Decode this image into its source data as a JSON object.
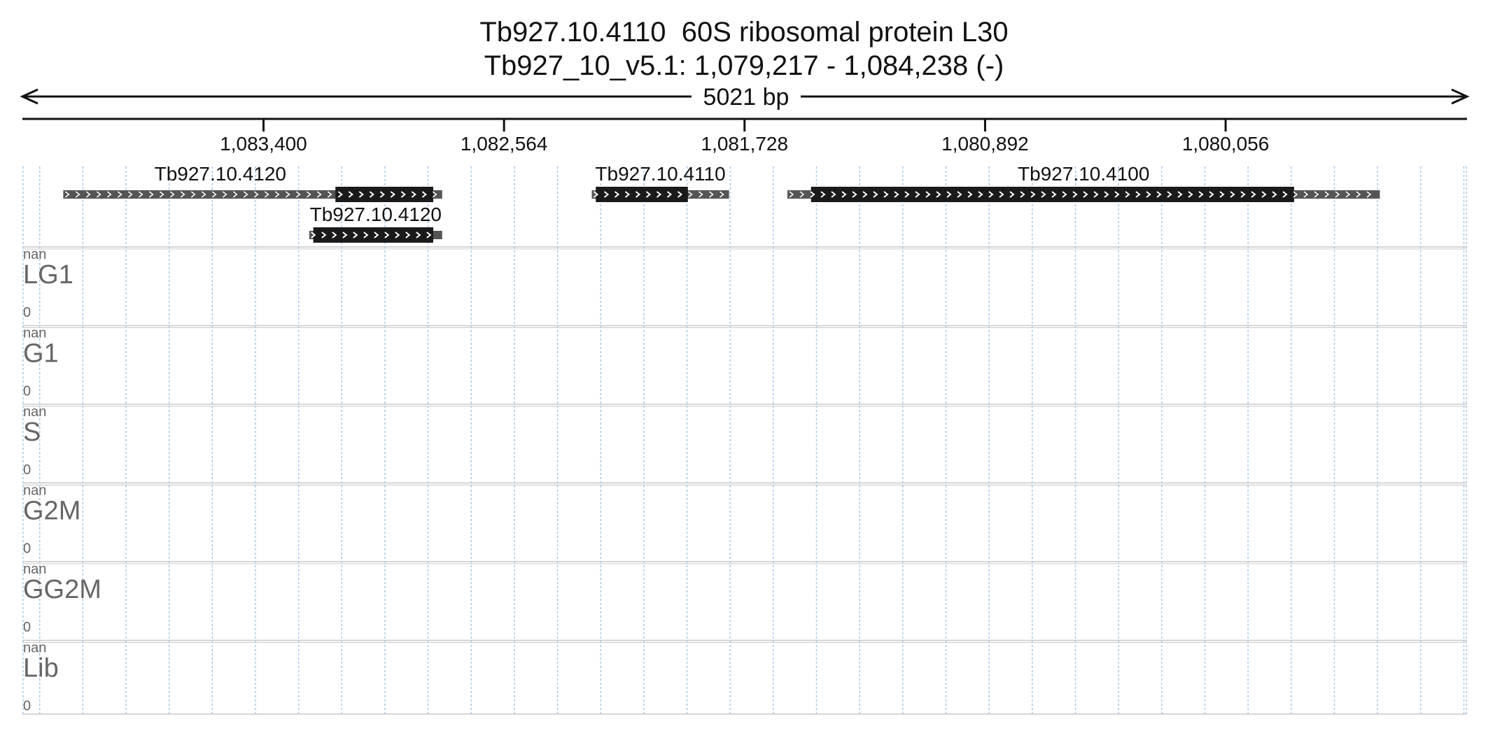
{
  "header": {
    "title_line1": "Tb927.10.4110  60S ribosomal protein L30",
    "title_line2": "Tb927_10_v5.1: 1,079,217 - 1,084,238 (-)",
    "span_label": "5021 bp"
  },
  "axis": {
    "start_bp": 1084238,
    "end_bp": 1079217,
    "reversed": true,
    "ticks": [
      {
        "value": 1083400,
        "label": "1,083,400"
      },
      {
        "value": 1082564,
        "label": "1,082,564"
      },
      {
        "value": 1081728,
        "label": "1,081,728"
      },
      {
        "value": 1080892,
        "label": "1,080,892"
      },
      {
        "value": 1080056,
        "label": "1,080,056"
      }
    ]
  },
  "genes": [
    {
      "label": "Tb927.10.4120",
      "row": 0,
      "tx_start": 1084096,
      "tx_end": 1082779,
      "cds_start": 1083150,
      "cds_end": 1082810
    },
    {
      "label": "Tb927.10.4120",
      "row": 1,
      "tx_start": 1083241,
      "tx_end": 1082779,
      "cds_start": 1083227,
      "cds_end": 1082810
    },
    {
      "label": "Tb927.10.4110",
      "row": 0,
      "tx_start": 1082259,
      "tx_end": 1081782,
      "cds_start": 1082245,
      "cds_end": 1081925
    },
    {
      "label": "Tb927.10.4110",
      "row": 0,
      "show_label": false,
      "tx_start": 1081579,
      "tx_end": 1079520,
      "cds_start": 1081497,
      "cds_end": 1079818
    }
  ],
  "gene_label_overrides": {
    "3": "Tb927.10.4100"
  },
  "tracks": [
    {
      "name": "LG1",
      "max_label": "nan",
      "min_label": "0"
    },
    {
      "name": "G1",
      "max_label": "nan",
      "min_label": "0"
    },
    {
      "name": "S",
      "max_label": "nan",
      "min_label": "0"
    },
    {
      "name": "G2M",
      "max_label": "nan",
      "min_label": "0"
    },
    {
      "name": "GG2M",
      "max_label": "nan",
      "min_label": "0"
    },
    {
      "name": "Lib",
      "max_label": "nan",
      "min_label": "0"
    }
  ],
  "colors": {
    "text": "#111111",
    "track_label": "#666666",
    "grid": "#a8c8e6",
    "track_border": "#c8c8c8",
    "utr": "#555555",
    "cds": "#1a1a1a",
    "arrow_glyph": "#ffffff"
  },
  "grid_interval_bp": 150
}
